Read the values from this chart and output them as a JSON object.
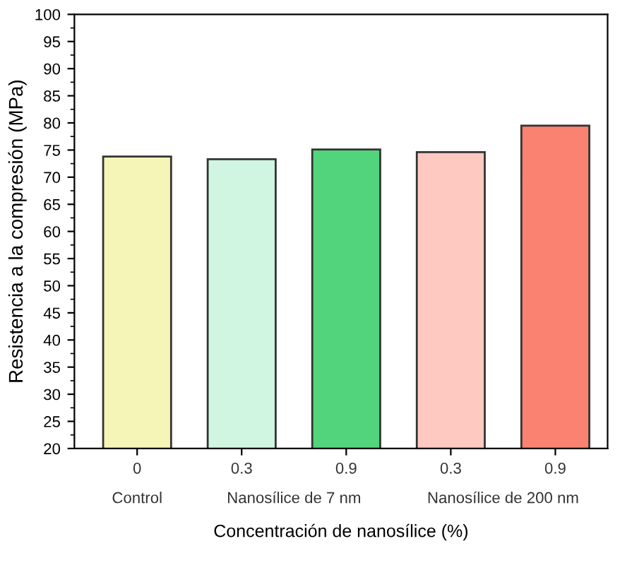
{
  "chart_data": {
    "type": "bar",
    "categories": [
      "0",
      "0.3",
      "0.9",
      "0.3",
      "0.9"
    ],
    "values": [
      73.8,
      73.3,
      75.1,
      74.6,
      79.5
    ],
    "colors": [
      "#f5f5b8",
      "#d0f5e0",
      "#52d47c",
      "#fdc9c1",
      "#fa8270"
    ],
    "xlabel": "Concentración de nanosílice (%)",
    "ylabel": "Resistencia a la compresión (MPa)",
    "ylim": [
      20,
      100
    ],
    "yticks": [
      20,
      25,
      30,
      35,
      40,
      45,
      50,
      55,
      60,
      65,
      70,
      75,
      80,
      85,
      90,
      95,
      100
    ],
    "annotations": [
      "Control",
      "Nanosílice de 7 nm",
      "Nanosílice de 200 nm"
    ],
    "grid": false,
    "legend": false
  }
}
